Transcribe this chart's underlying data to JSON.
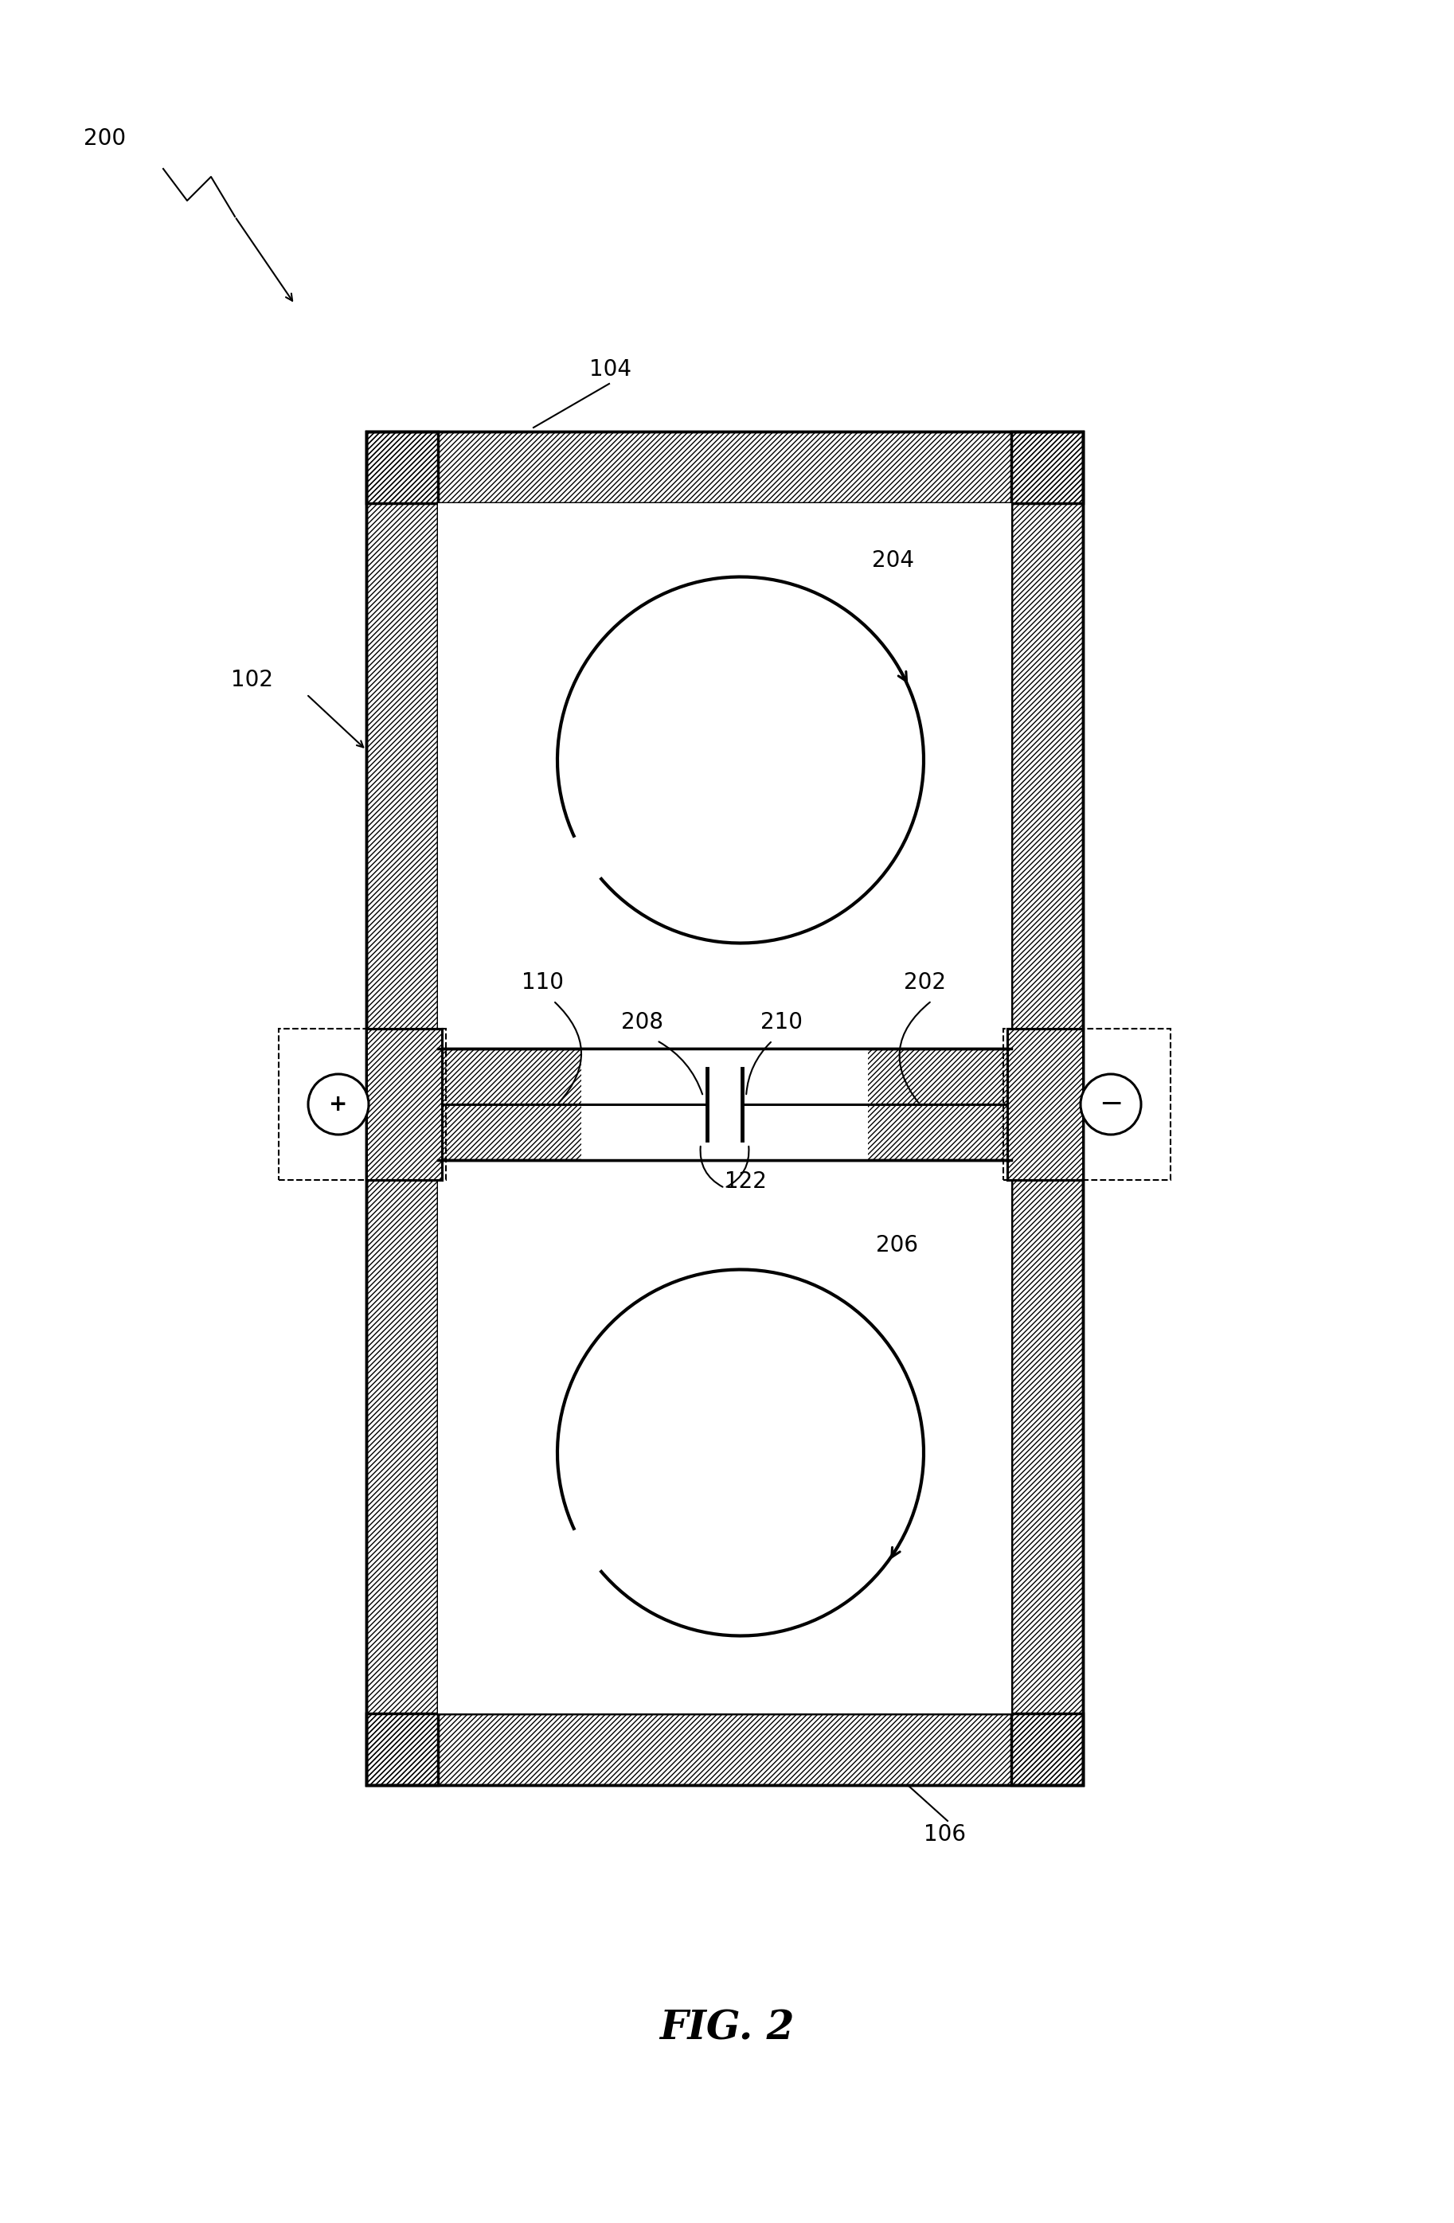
{
  "figure_label": "FIG. 2",
  "ref_200": "200",
  "ref_102": "102",
  "ref_104": "104",
  "ref_106": "106",
  "ref_110": "110",
  "ref_202": "202",
  "ref_204": "204",
  "ref_206": "206",
  "ref_208": "208",
  "ref_210": "210",
  "ref_122": "122",
  "bg_color": "#ffffff",
  "line_color": "#000000",
  "lw_main": 2.2,
  "lw_border": 2.5,
  "lw_thin": 1.5,
  "coil_lw": 3.0,
  "fs_label": 20
}
